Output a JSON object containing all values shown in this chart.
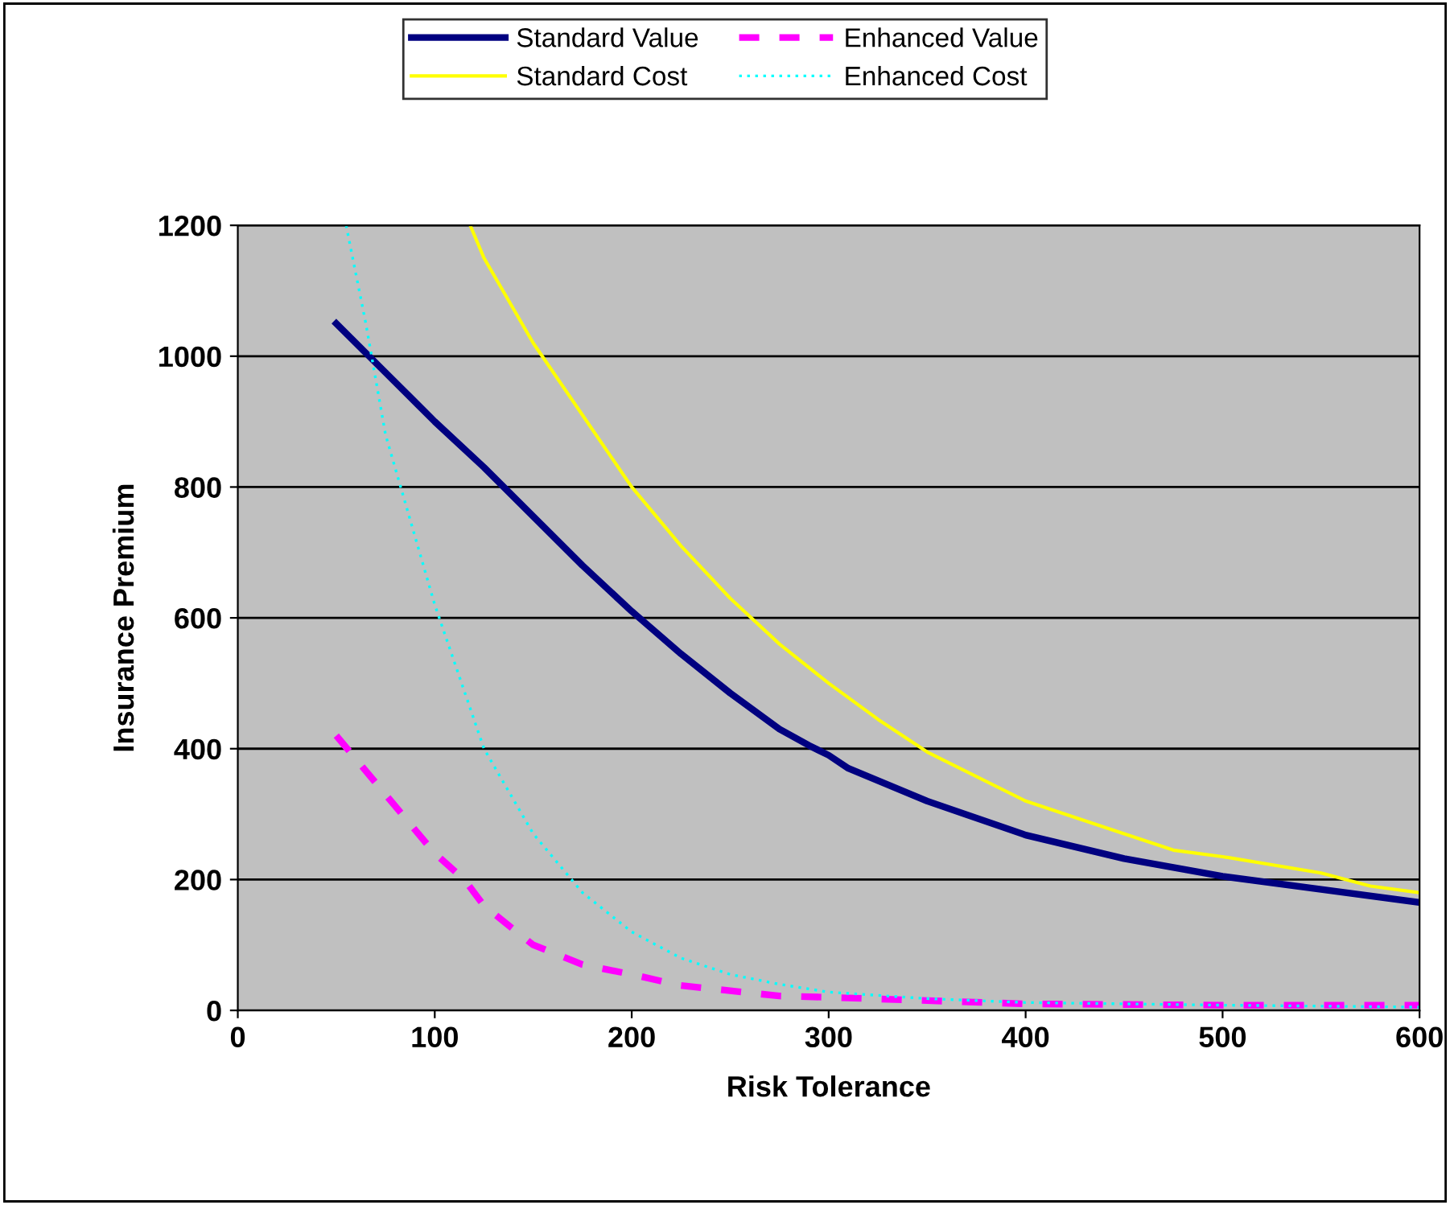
{
  "chart_data": {
    "type": "line",
    "xlabel": "Risk Tolerance",
    "ylabel": "Insurance Premium",
    "xlim": [
      0,
      600
    ],
    "xticks": [
      0,
      100,
      200,
      300,
      400,
      500,
      600
    ],
    "ylim": [
      0,
      1200
    ],
    "yticks": [
      0,
      200,
      400,
      600,
      800,
      1000,
      1200
    ],
    "grid": "y",
    "legend": "top",
    "marker": "none",
    "series": [
      {
        "name": "Standard Value",
        "color": "#000080",
        "line_style": "solid",
        "x": [
          50,
          75,
          100,
          125,
          150,
          175,
          200,
          225,
          250,
          275,
          290,
          300,
          310,
          350,
          400,
          450,
          500,
          550,
          600
        ],
        "values": [
          1050,
          975,
          900,
          830,
          755,
          680,
          610,
          545,
          485,
          430,
          405,
          390,
          370,
          320,
          268,
          232,
          205,
          185,
          165
        ]
      },
      {
        "name": "Enhanced Value",
        "color": "#ff00ff",
        "line_style": "dashed",
        "x": [
          50,
          75,
          100,
          115,
          125,
          150,
          175,
          200,
          225,
          250,
          275,
          300,
          350,
          400,
          500,
          600
        ],
        "values": [
          420,
          330,
          240,
          200,
          160,
          100,
          70,
          55,
          38,
          30,
          22,
          20,
          15,
          10,
          8,
          8
        ]
      },
      {
        "name": "Standard Cost",
        "color": "#ffff00",
        "line_style": "solid",
        "x": [
          118,
          125,
          150,
          175,
          200,
          225,
          250,
          275,
          300,
          325,
          350,
          400,
          450,
          475,
          500,
          550,
          575,
          600
        ],
        "values": [
          1200,
          1150,
          1020,
          910,
          800,
          710,
          630,
          560,
          500,
          445,
          395,
          320,
          270,
          245,
          235,
          210,
          190,
          180
        ]
      },
      {
        "name": "Enhanced Cost",
        "color": "#00ffff",
        "line_style": "dotted",
        "x": [
          55,
          65,
          75,
          100,
          125,
          150,
          175,
          200,
          225,
          250,
          275,
          300,
          350,
          400,
          500,
          600
        ],
        "values": [
          1200,
          1050,
          880,
          620,
          400,
          270,
          180,
          120,
          80,
          55,
          40,
          28,
          18,
          12,
          8,
          5
        ]
      }
    ]
  }
}
